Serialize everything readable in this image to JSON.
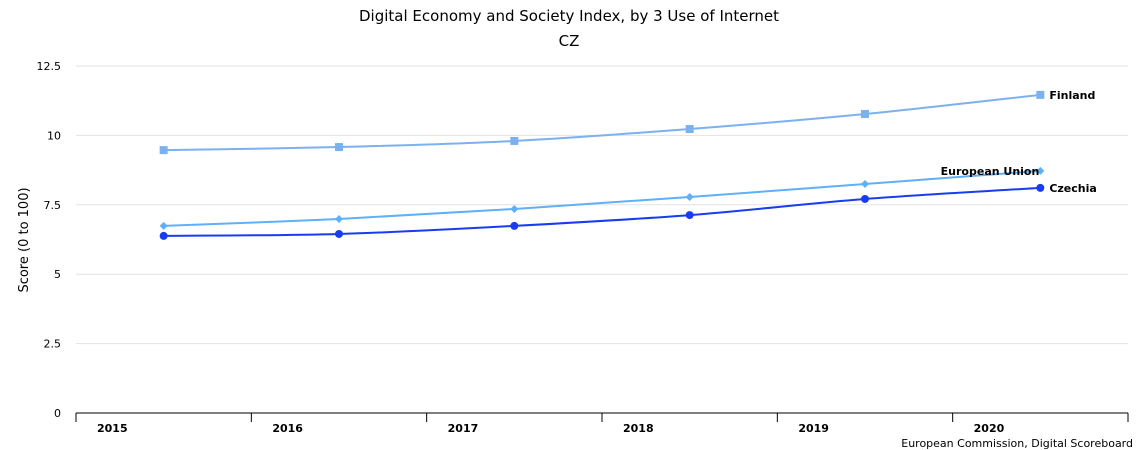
{
  "chart_data": {
    "type": "line",
    "title": "Digital Economy and Society Index, by 3 Use of Internet",
    "subtitle": "CZ",
    "xlabel": "",
    "ylabel": "Score (0 to 100)",
    "ylim": [
      0,
      12.5
    ],
    "yticks": [
      "0",
      "2.5",
      "5",
      "7.5",
      "10",
      "12.5"
    ],
    "ytick_values": [
      0,
      2.5,
      5,
      7.5,
      10,
      12.5
    ],
    "categories": [
      "2015",
      "2016",
      "2017",
      "2018",
      "2019",
      "2020"
    ],
    "grid": true,
    "series": [
      {
        "name": "Finland",
        "color": "#7cb1f0",
        "marker": "square",
        "values": [
          9.47,
          9.58,
          9.8,
          10.23,
          10.77,
          11.46
        ]
      },
      {
        "name": "European Union",
        "color": "#5eb0f8",
        "marker": "diamond",
        "values": [
          6.74,
          6.99,
          7.35,
          7.78,
          8.25,
          8.72
        ]
      },
      {
        "name": "Czechia",
        "color": "#1a3cf0",
        "marker": "circle",
        "values": [
          6.38,
          6.45,
          6.74,
          7.13,
          7.71,
          8.11
        ]
      }
    ],
    "source": "European Commission, Digital Scoreboard"
  }
}
